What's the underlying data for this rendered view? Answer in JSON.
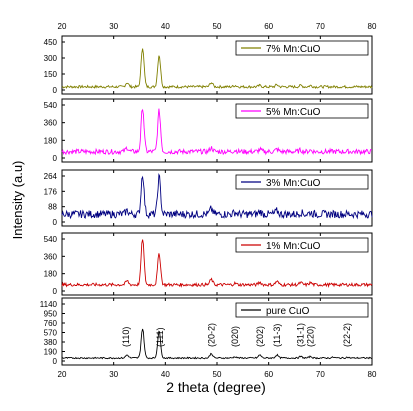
{
  "chart_data": {
    "type": "line",
    "x_axis": {
      "label": "2 theta (degree)",
      "range": [
        20,
        80
      ],
      "ticks": [
        "20",
        "30",
        "40",
        "50",
        "60",
        "70",
        "80"
      ]
    },
    "y_axis": {
      "label": "Intensity (a.u)"
    },
    "grid": false,
    "legend_placement": "top-right",
    "panels": [
      {
        "name": "7% Mn:CuO",
        "color": "#808000",
        "ylim": [
          0,
          450
        ],
        "yticks": [
          0,
          150,
          300,
          450
        ],
        "baseline": 30,
        "noise": 12,
        "peaks": [
          [
            32.6,
            40
          ],
          [
            35.6,
            370
          ],
          [
            38.8,
            300
          ],
          [
            48.9,
            40
          ],
          [
            53.5,
            12
          ],
          [
            58.3,
            12
          ],
          [
            61.6,
            18
          ],
          [
            66.2,
            12
          ],
          [
            68.1,
            12
          ]
        ]
      },
      {
        "name": "5% Mn:CuO",
        "color": "#ff00ff",
        "ylim": [
          0,
          540
        ],
        "yticks": [
          0,
          180,
          360,
          540
        ],
        "baseline": 65,
        "noise": 25,
        "peaks": [
          [
            32.6,
            40
          ],
          [
            35.6,
            450
          ],
          [
            38.8,
            420
          ],
          [
            48.9,
            40
          ],
          [
            53.5,
            15
          ],
          [
            58.3,
            20
          ],
          [
            61.6,
            25
          ],
          [
            66.2,
            15
          ],
          [
            68.1,
            15
          ]
        ]
      },
      {
        "name": "3% Mn:CuO",
        "color": "#000080",
        "ylim": [
          0,
          264
        ],
        "yticks": [
          0,
          88,
          176,
          264
        ],
        "baseline": 45,
        "noise": 22,
        "peaks": [
          [
            32.6,
            20
          ],
          [
            35.6,
            230
          ],
          [
            38.8,
            215
          ],
          [
            48.9,
            30
          ],
          [
            53.5,
            10
          ],
          [
            58.3,
            15
          ],
          [
            61.6,
            18
          ],
          [
            66.2,
            10
          ],
          [
            68.1,
            10
          ]
        ]
      },
      {
        "name": "1% Mn:CuO",
        "color": "#cc0000",
        "ylim": [
          0,
          540
        ],
        "yticks": [
          0,
          180,
          360,
          540
        ],
        "baseline": 65,
        "noise": 16,
        "peaks": [
          [
            32.6,
            40
          ],
          [
            35.6,
            480
          ],
          [
            38.8,
            330
          ],
          [
            48.9,
            55
          ],
          [
            53.5,
            15
          ],
          [
            58.3,
            25
          ],
          [
            61.6,
            35
          ],
          [
            66.2,
            20
          ],
          [
            68.1,
            20
          ]
        ]
      },
      {
        "name": "pure CuO",
        "color": "#000000",
        "ylim": [
          0,
          1140
        ],
        "yticks": [
          0,
          190,
          380,
          570,
          760,
          950,
          1140
        ],
        "baseline": 60,
        "noise": 14,
        "peaks": [
          [
            32.6,
            60
          ],
          [
            35.6,
            590
          ],
          [
            38.8,
            540
          ],
          [
            48.9,
            90
          ],
          [
            53.5,
            25
          ],
          [
            58.3,
            60
          ],
          [
            61.6,
            60
          ],
          [
            66.2,
            30
          ],
          [
            68.1,
            30
          ],
          [
            72.5,
            15
          ],
          [
            75.2,
            15
          ]
        ]
      }
    ],
    "annotations": [
      {
        "text": "(110)",
        "x": 32.4
      },
      {
        "text": "(111)",
        "x": 39.0
      },
      {
        "text": "(20-2)",
        "x": 48.9
      },
      {
        "text": "(020)",
        "x": 53.5
      },
      {
        "text": "(202)",
        "x": 58.3
      },
      {
        "text": "(11-3)",
        "x": 61.6
      },
      {
        "text": "(31-1)",
        "x": 66.2
      },
      {
        "text": "(220)",
        "x": 68.1
      },
      {
        "text": "(22-2)",
        "x": 75.2
      }
    ]
  }
}
